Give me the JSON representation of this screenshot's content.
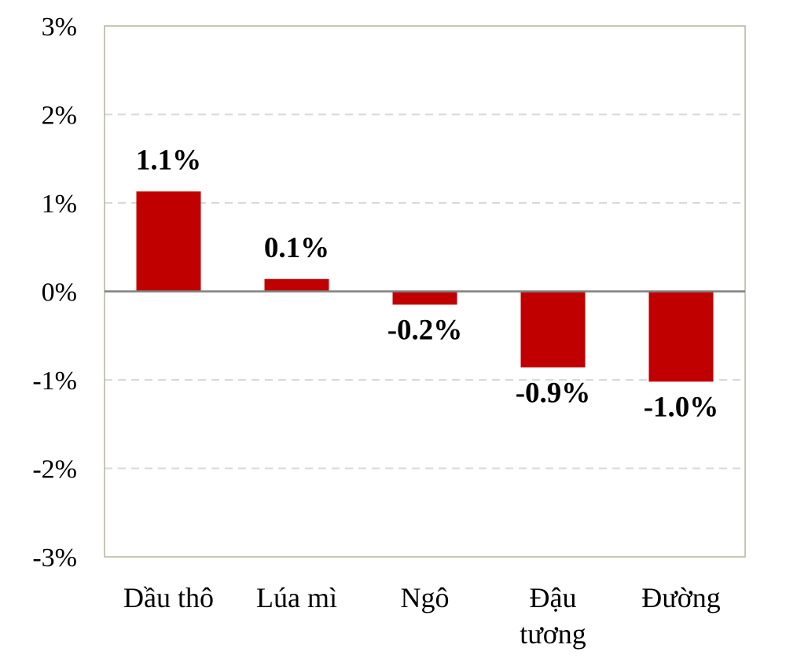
{
  "chart_data": {
    "type": "bar",
    "categories": [
      [
        "Dầu thô"
      ],
      [
        "Lúa mì"
      ],
      [
        "Ngô"
      ],
      [
        "Đậu",
        "tương"
      ],
      [
        "Đường"
      ]
    ],
    "values": [
      1.13,
      0.14,
      -0.15,
      -0.86,
      -1.02
    ],
    "data_labels": [
      "1.1%",
      "0.1%",
      "-0.2%",
      "-0.9%",
      "-1.0%"
    ],
    "ylim": [
      -3,
      3
    ],
    "yticks": [
      3,
      2,
      1,
      0,
      -1,
      -2,
      -3
    ],
    "ytick_labels": [
      "3%",
      "2%",
      "1%",
      "0%",
      "-1%",
      "-2%",
      "-3%"
    ],
    "grid": true,
    "title": "",
    "xlabel": "",
    "ylabel": "",
    "colors": {
      "bar": "#c00000",
      "grid": "#d9d9d9",
      "zero_line": "#808080",
      "plot_border": "#b8b49b"
    }
  }
}
